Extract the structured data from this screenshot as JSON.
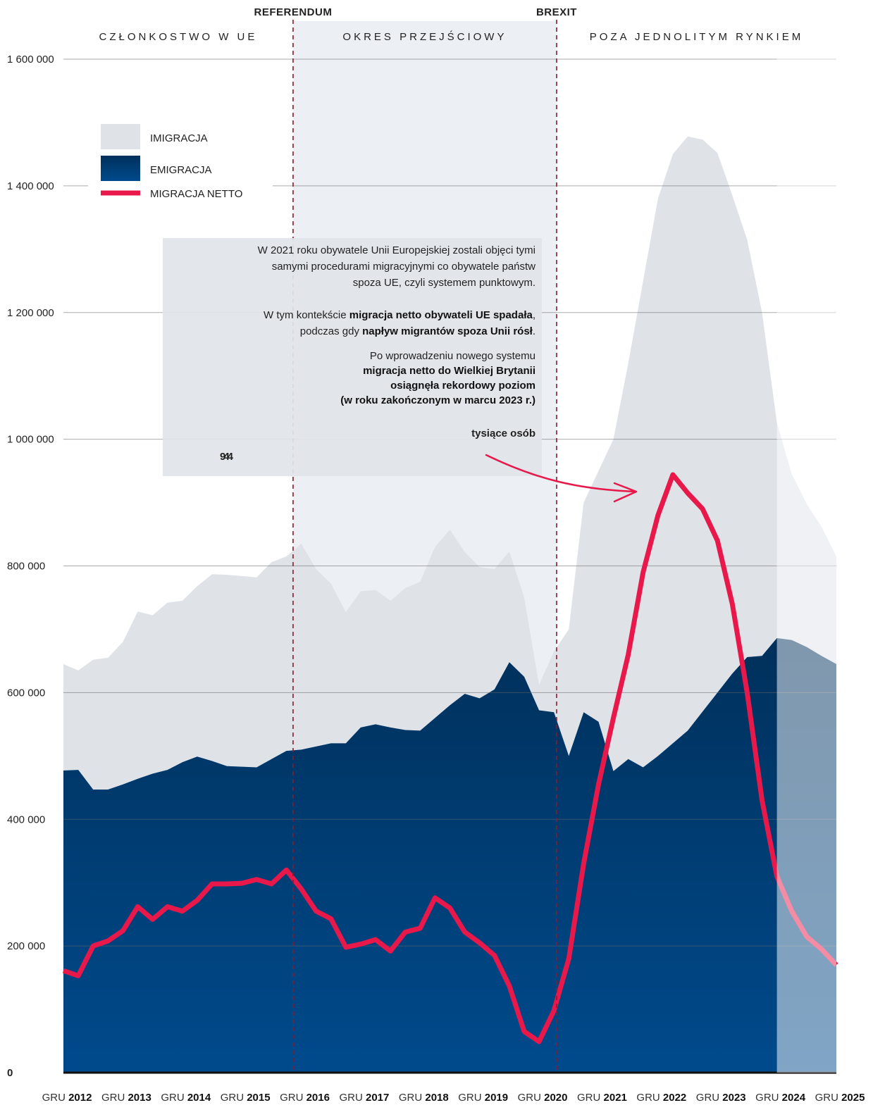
{
  "chart_data": {
    "type": "area",
    "categories": [
      "GRU 2012",
      null,
      null,
      null,
      "GRU 2013",
      null,
      null,
      null,
      "GRU 2014",
      null,
      null,
      null,
      "GRU 2015",
      null,
      null,
      null,
      "GRU 2016",
      null,
      null,
      null,
      "GRU 2017",
      null,
      null,
      null,
      "GRU 2018",
      null,
      null,
      null,
      "GRU 2019",
      null,
      null,
      null,
      "GRU 2020",
      null,
      null,
      null,
      "GRU 2021",
      null,
      null,
      null,
      "GRU 2022",
      null,
      null,
      null,
      "GRU 2023",
      null,
      null,
      null,
      "GRU 2024",
      null,
      null,
      null,
      "GRU 2025"
    ],
    "series": [
      {
        "name": "IMIGRACJA",
        "kind": "area",
        "color": "#dfe3e8",
        "values": [
          645000,
          635000,
          652000,
          655000,
          680000,
          728000,
          722000,
          742000,
          745000,
          768000,
          787000,
          786000,
          784000,
          782000,
          806000,
          815000,
          835000,
          795000,
          772000,
          727000,
          760000,
          762000,
          745000,
          765000,
          775000,
          830000,
          857000,
          822000,
          798000,
          795000,
          823000,
          750000,
          612000,
          665000,
          700000,
          900000,
          950000,
          1000000,
          1120000,
          1250000,
          1380000,
          1450000,
          1478000,
          1473000,
          1452000,
          1385000,
          1315000,
          1200000,
          1026000,
          945000,
          898000,
          862000,
          815000
        ]
      },
      {
        "name": "EMIGRACJA",
        "kind": "area",
        "color": "#004a8c",
        "values": [
          477000,
          478000,
          447000,
          447000,
          455000,
          464000,
          472000,
          478000,
          490000,
          499000,
          492000,
          484000,
          483000,
          482000,
          495000,
          508000,
          510000,
          515000,
          520000,
          520000,
          545000,
          550000,
          545000,
          541000,
          540000,
          560000,
          580000,
          598000,
          591000,
          605000,
          648000,
          625000,
          572000,
          569000,
          500000,
          569000,
          554000,
          476000,
          495000,
          482000,
          500000,
          520000,
          540000,
          570000,
          600000,
          630000,
          656000,
          658000,
          686000,
          683000,
          672000,
          658000,
          645000
        ]
      },
      {
        "name": "MIGRACJA NETTO",
        "kind": "line",
        "color": "#e8194a",
        "values": [
          161000,
          153000,
          200000,
          208000,
          224000,
          262000,
          242000,
          262000,
          255000,
          272000,
          298000,
          298000,
          299000,
          305000,
          298000,
          320000,
          290000,
          255000,
          243000,
          198000,
          203000,
          210000,
          192000,
          222000,
          228000,
          276000,
          260000,
          222000,
          205000,
          185000,
          137000,
          65000,
          49000,
          98000,
          180000,
          330000,
          455000,
          560000,
          660000,
          790000,
          880000,
          944000,
          915000,
          890000,
          840000,
          740000,
          600000,
          430000,
          310000,
          255000,
          215000,
          195000,
          170000
        ]
      }
    ],
    "ylim": [
      0,
      1600000
    ],
    "yticks": [
      0,
      {
        "value": 200000,
        "label": "200 000"
      },
      {
        "value": 400000,
        "label": "400 000"
      },
      {
        "value": 600000,
        "label": "600 000"
      },
      {
        "value": 800000,
        "label": "800 000"
      },
      {
        "value": 1000000,
        "label": "1 000 000"
      },
      {
        "value": 1200000,
        "label": "1 200 000"
      },
      {
        "value": 1400000,
        "label": "1 400 000"
      },
      {
        "value": 1600000,
        "label": "1 600 000"
      }
    ],
    "grid": true,
    "legend": "upper left",
    "projection_from": 48,
    "markers": [
      {
        "label": "REFERENDUM",
        "at": 15.45
      },
      {
        "label": "BREXIT",
        "at": 33.18
      }
    ],
    "periods": [
      "CZŁONKOSTWO W UE",
      "OKRES PRZEJŚCIOWY",
      "POZA JEDNOLITYM RYNKIEM"
    ],
    "note": {
      "lines": [
        [
          {
            "t": "W 2021 roku obywatele Unii Europejskiej zostali objęci tymi"
          }
        ],
        [
          {
            "t": "samymi procedurami migracyjnymi co obywatele państw"
          }
        ],
        [
          {
            "t": "spoza UE, czyli systemem punktowym."
          }
        ],
        [
          {
            "t": "W tym kontekście "
          },
          {
            "t": "migracja netto obywateli UE spadała",
            "b": true
          },
          {
            "t": ","
          }
        ],
        [
          {
            "t": "podczas gdy "
          },
          {
            "t": "napływ migrantów spoza Unii rósł",
            "b": true
          },
          {
            "t": "."
          }
        ]
      ],
      "big": [
        [
          {
            "t": "Po wprowadzeniu nowego systemu"
          }
        ],
        [
          {
            "t": "migracja netto do Wielkiej Brytanii",
            "b": true
          }
        ],
        [
          {
            "t": "osiągnęła rekordowy poziom",
            "b": true
          }
        ],
        [
          {
            "t": "(w roku zakończonym w marcu 2023 r.)",
            "b": true
          }
        ]
      ],
      "highlight": 944,
      "highlight_unit": "tysiące osób"
    }
  }
}
